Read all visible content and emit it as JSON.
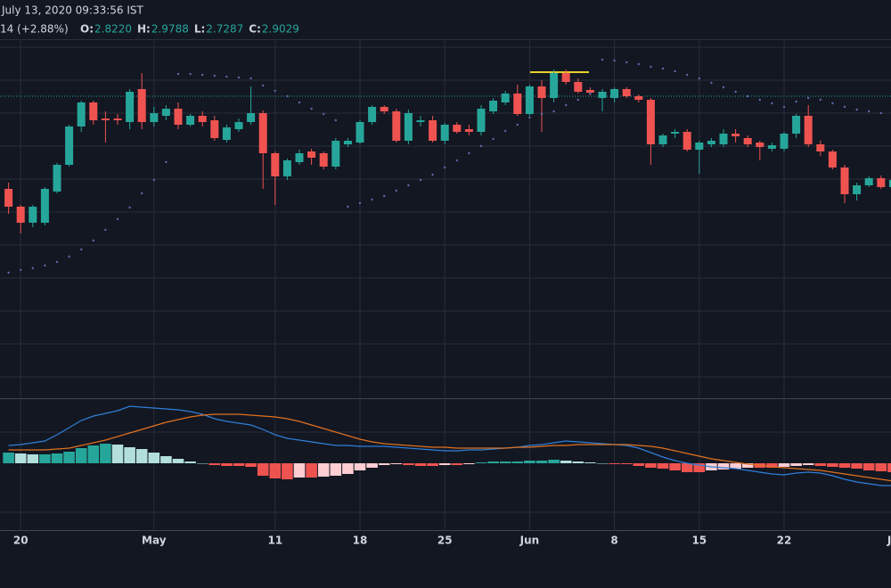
{
  "header": {
    "timestamp": "July 13, 2020 09:33:56 IST",
    "change": "14 (+2.88%)",
    "ohlc": [
      {
        "label": "O:",
        "value": "2.8220"
      },
      {
        "label": "H:",
        "value": "2.9788"
      },
      {
        "label": "L:",
        "value": "2.7287"
      },
      {
        "label": "C:",
        "value": "2.9029"
      }
    ]
  },
  "chart_data": [
    {
      "type": "candlestick",
      "up_color": "#26a69a",
      "down_color": "#ef5350",
      "sar_color": "#5b6aa8",
      "ylim": [
        -0.47,
        3.55
      ],
      "categories": [
        null,
        "20",
        null,
        null,
        null,
        null,
        null,
        null,
        null,
        null,
        null,
        null,
        "May",
        null,
        null,
        null,
        null,
        null,
        null,
        null,
        null,
        null,
        "11",
        null,
        null,
        null,
        null,
        null,
        null,
        "18",
        null,
        null,
        null,
        null,
        null,
        null,
        "25",
        null,
        null,
        null,
        null,
        null,
        null,
        "Jun",
        null,
        null,
        null,
        null,
        null,
        null,
        "8",
        null,
        null,
        null,
        null,
        null,
        null,
        "15",
        null,
        null,
        null,
        null,
        null,
        null,
        "22",
        null,
        null,
        null,
        null,
        null,
        null,
        null,
        null,
        "Ju"
      ],
      "open": [
        1.88,
        1.68,
        1.5,
        1.5,
        1.85,
        2.15,
        2.58,
        2.85,
        2.67,
        2.67,
        2.63,
        3.0,
        2.63,
        2.7,
        2.78,
        2.6,
        2.7,
        2.65,
        2.43,
        2.55,
        2.63,
        2.73,
        2.28,
        2.02,
        2.18,
        2.3,
        2.28,
        2.13,
        2.38,
        2.4,
        2.63,
        2.8,
        2.75,
        2.42,
        2.63,
        2.65,
        2.42,
        2.6,
        2.55,
        2.52,
        2.75,
        2.85,
        2.95,
        2.72,
        3.03,
        2.9,
        3.18,
        3.08,
        2.99,
        2.9,
        2.9,
        3.0,
        2.92,
        2.88,
        2.38,
        2.5,
        2.52,
        2.32,
        2.38,
        2.38,
        2.5,
        2.45,
        2.4,
        2.33,
        2.33,
        2.5,
        2.7,
        2.38,
        2.3,
        2.12,
        1.82,
        1.92,
        2.0,
        1.9
      ],
      "high": [
        1.95,
        1.7,
        1.7,
        1.9,
        2.17,
        2.6,
        2.87,
        2.87,
        2.75,
        2.72,
        3.0,
        3.18,
        2.8,
        2.82,
        2.85,
        2.72,
        2.75,
        2.7,
        2.6,
        2.67,
        3.03,
        2.76,
        2.3,
        2.22,
        2.32,
        2.33,
        2.3,
        2.45,
        2.45,
        2.65,
        2.82,
        2.82,
        2.78,
        2.77,
        2.7,
        2.7,
        2.62,
        2.63,
        2.6,
        2.82,
        2.9,
        2.98,
        3.05,
        3.05,
        3.1,
        3.22,
        3.22,
        3.12,
        3.02,
        3.0,
        3.02,
        3.02,
        2.94,
        2.9,
        2.5,
        2.55,
        2.55,
        2.42,
        2.45,
        2.55,
        2.55,
        2.48,
        2.42,
        2.4,
        2.52,
        2.72,
        2.82,
        2.42,
        2.32,
        2.15,
        1.95,
        2.02,
        2.03,
        2.02
      ],
      "low": [
        1.6,
        1.38,
        1.45,
        1.47,
        1.83,
        2.13,
        2.52,
        2.6,
        2.4,
        2.6,
        2.55,
        2.55,
        2.58,
        2.65,
        2.55,
        2.58,
        2.58,
        2.42,
        2.4,
        2.52,
        2.6,
        1.88,
        1.7,
        1.98,
        2.15,
        2.15,
        2.1,
        2.1,
        2.35,
        2.38,
        2.6,
        2.72,
        2.4,
        2.38,
        2.58,
        2.4,
        2.38,
        2.5,
        2.48,
        2.48,
        2.72,
        2.82,
        2.7,
        2.7,
        2.52,
        2.85,
        3.05,
        2.95,
        2.93,
        2.75,
        2.85,
        2.9,
        2.85,
        2.15,
        2.35,
        2.45,
        2.3,
        2.05,
        2.35,
        2.35,
        2.4,
        2.35,
        2.2,
        2.3,
        2.3,
        2.45,
        2.35,
        2.25,
        2.1,
        1.72,
        1.75,
        1.9,
        1.88,
        1.85
      ],
      "close": [
        1.68,
        1.5,
        1.68,
        1.88,
        2.15,
        2.58,
        2.85,
        2.65,
        2.65,
        2.65,
        2.97,
        2.63,
        2.73,
        2.78,
        2.6,
        2.7,
        2.63,
        2.45,
        2.57,
        2.63,
        2.73,
        2.28,
        2.02,
        2.2,
        2.28,
        2.23,
        2.13,
        2.42,
        2.42,
        2.63,
        2.8,
        2.75,
        2.42,
        2.73,
        2.65,
        2.42,
        2.6,
        2.52,
        2.52,
        2.78,
        2.87,
        2.95,
        2.72,
        3.03,
        2.9,
        3.18,
        3.08,
        2.97,
        2.96,
        2.97,
        3.0,
        2.92,
        2.88,
        2.38,
        2.48,
        2.52,
        2.32,
        2.4,
        2.42,
        2.5,
        2.47,
        2.38,
        2.35,
        2.37,
        2.5,
        2.7,
        2.38,
        2.3,
        2.12,
        1.82,
        1.92,
        2.0,
        1.9,
        1.98
      ],
      "sar": [
        0.94,
        0.97,
        0.99,
        1.02,
        1.06,
        1.12,
        1.2,
        1.3,
        1.42,
        1.54,
        1.67,
        1.83,
        1.98,
        2.18,
        3.17,
        3.17,
        3.16,
        3.15,
        3.14,
        3.13,
        3.12,
        3.04,
        2.98,
        2.92,
        2.85,
        2.78,
        2.72,
        2.65,
        1.68,
        1.72,
        1.76,
        1.8,
        1.86,
        1.92,
        1.98,
        2.04,
        2.12,
        2.2,
        2.28,
        2.36,
        2.44,
        2.53,
        2.6,
        2.68,
        2.72,
        2.75,
        2.82,
        2.88,
        2.95,
        3.33,
        3.32,
        3.3,
        3.28,
        3.25,
        3.23,
        3.2,
        3.16,
        3.12,
        3.07,
        3.02,
        2.97,
        2.92,
        2.88,
        2.84,
        2.8,
        2.86,
        2.9,
        2.88,
        2.84,
        2.8,
        2.77,
        2.75,
        2.73,
        2.71
      ]
    },
    {
      "type": "macd",
      "ylim": [
        -0.075,
        0.072
      ],
      "series": [
        {
          "name": "MACD",
          "color": "#2e7fd8",
          "values": [
            0.02,
            0.021,
            0.023,
            0.025,
            0.032,
            0.04,
            0.048,
            0.053,
            0.056,
            0.059,
            0.064,
            0.063,
            0.062,
            0.061,
            0.06,
            0.058,
            0.055,
            0.05,
            0.047,
            0.045,
            0.043,
            0.038,
            0.032,
            0.028,
            0.026,
            0.024,
            0.022,
            0.02,
            0.02,
            0.019,
            0.019,
            0.019,
            0.018,
            0.017,
            0.016,
            0.015,
            0.014,
            0.014,
            0.015,
            0.015,
            0.016,
            0.017,
            0.018,
            0.02,
            0.021,
            0.023,
            0.025,
            0.024,
            0.023,
            0.022,
            0.021,
            0.02,
            0.017,
            0.012,
            0.007,
            0.003,
            0,
            -0.002,
            -0.004,
            -0.005,
            -0.006,
            -0.008,
            -0.01,
            -0.012,
            -0.013,
            -0.011,
            -0.01,
            -0.011,
            -0.014,
            -0.018,
            -0.021,
            -0.023,
            -0.025,
            -0.025
          ]
        },
        {
          "name": "Signal",
          "color": "#e0711f",
          "values": [
            0.015,
            0.015,
            0.015,
            0.015,
            0.016,
            0.017,
            0.02,
            0.023,
            0.026,
            0.03,
            0.034,
            0.038,
            0.042,
            0.046,
            0.049,
            0.052,
            0.054,
            0.055,
            0.055,
            0.055,
            0.054,
            0.053,
            0.052,
            0.05,
            0.047,
            0.043,
            0.039,
            0.035,
            0.031,
            0.027,
            0.024,
            0.022,
            0.021,
            0.02,
            0.019,
            0.018,
            0.018,
            0.017,
            0.017,
            0.017,
            0.017,
            0.017,
            0.018,
            0.018,
            0.019,
            0.02,
            0.02,
            0.021,
            0.021,
            0.021,
            0.021,
            0.021,
            0.02,
            0.019,
            0.017,
            0.014,
            0.011,
            0.008,
            0.005,
            0.003,
            0.001,
            -0.001,
            -0.002,
            -0.004,
            -0.005,
            -0.006,
            -0.007,
            -0.008,
            -0.01,
            -0.012,
            -0.014,
            -0.016,
            -0.018,
            -0.02
          ]
        },
        {
          "name": "Histogram",
          "colors": [
            "#26a69a",
            "#b2dfdb",
            "#ef5350",
            "#ffcdd2"
          ],
          "values": [
            0.012,
            0.011,
            0.01,
            0.01,
            0.011,
            0.013,
            0.017,
            0.02,
            0.022,
            0.021,
            0.018,
            0.016,
            0.012,
            0.008,
            0.005,
            0.002,
            0,
            -0.002,
            -0.003,
            -0.003,
            -0.004,
            -0.014,
            -0.017,
            -0.018,
            -0.016,
            -0.016,
            -0.015,
            -0.014,
            -0.012,
            -0.008,
            -0.005,
            -0.002,
            -0.001,
            -0.002,
            -0.003,
            -0.003,
            -0.002,
            -0.002,
            -0.001,
            0.001,
            0.002,
            0.002,
            0.002,
            0.003,
            0.003,
            0.004,
            0.003,
            0.002,
            0.001,
            0,
            -0.001,
            -0.001,
            -0.003,
            -0.005,
            -0.006,
            -0.008,
            -0.01,
            -0.01,
            -0.008,
            -0.007,
            -0.006,
            -0.005,
            -0.005,
            -0.005,
            -0.004,
            -0.003,
            -0.002,
            -0.003,
            -0.004,
            -0.005,
            -0.006,
            -0.008,
            -0.009,
            -0.01
          ]
        }
      ]
    }
  ]
}
